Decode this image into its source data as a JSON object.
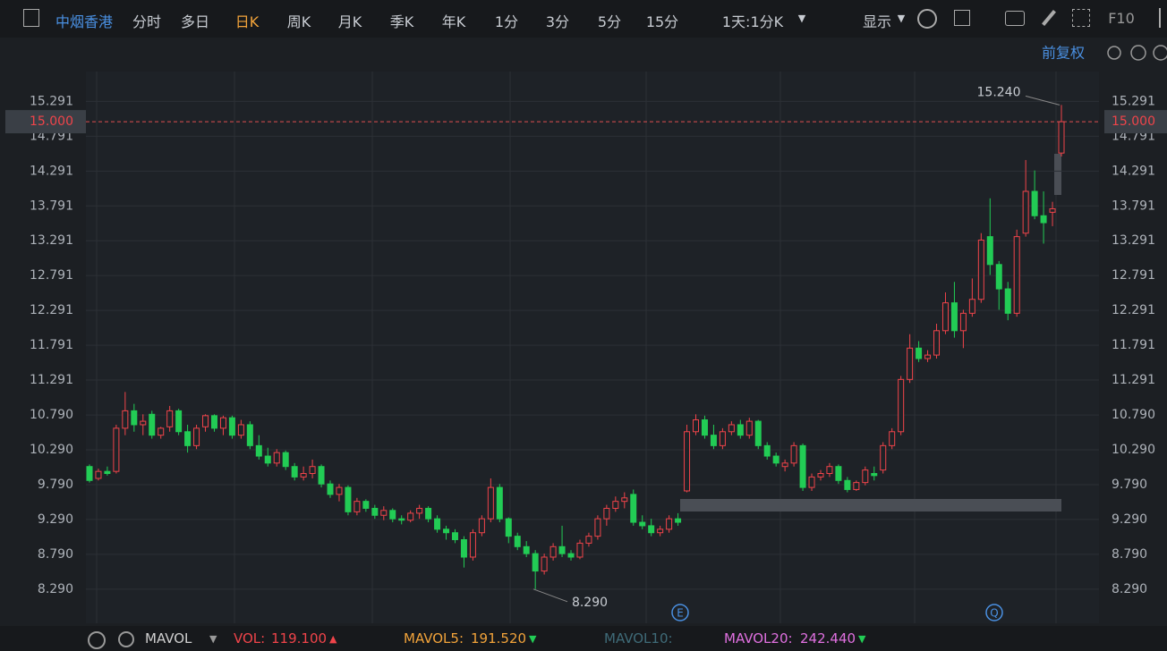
{
  "toolbar": {
    "symbol": "中烟香港",
    "tabs": [
      "分时",
      "多日",
      "日K",
      "周K",
      "月K",
      "季K",
      "年K",
      "1分",
      "3分",
      "5分",
      "15分"
    ],
    "active_tab": "日K",
    "period_select": "1天:1分K",
    "display": "显示",
    "f10": "F10",
    "adjust": "前复权"
  },
  "chart_data": {
    "type": "candlestick",
    "open": [
      10.05,
      9.88,
      9.98,
      9.98,
      10.6,
      10.85,
      10.65,
      10.8,
      10.5,
      10.62,
      10.85,
      10.55,
      10.35,
      10.62,
      10.78,
      10.6,
      10.75,
      10.5,
      10.65,
      10.35,
      10.2,
      10.1,
      10.25,
      10.05,
      9.9,
      9.95,
      10.05,
      9.8,
      9.65,
      9.75,
      9.4,
      9.55,
      9.45,
      9.35,
      9.42,
      9.3,
      9.28,
      9.38,
      9.45,
      9.3,
      9.15,
      9.1,
      9.0,
      8.75,
      9.1,
      9.3,
      9.75,
      9.3,
      9.05,
      8.9,
      8.8,
      8.55,
      8.75,
      8.9,
      8.8,
      8.75,
      8.95,
      9.05,
      9.3,
      9.45,
      9.55,
      9.65,
      9.25,
      9.2,
      9.1,
      9.15,
      9.3,
      9.7,
      10.55,
      10.72,
      10.5,
      10.35,
      10.55,
      10.65,
      10.5,
      10.7,
      10.35,
      10.2,
      10.05,
      10.1,
      10.35,
      9.75,
      9.9,
      9.95,
      10.05,
      9.85,
      9.72,
      9.82,
      9.95,
      10.0,
      10.35,
      10.55,
      11.3,
      11.75,
      11.6,
      11.65,
      12.0,
      12.4,
      12.0,
      12.25,
      12.45,
      13.35,
      12.95,
      12.6,
      12.25,
      13.4,
      14.0,
      13.65,
      13.7,
      14.55
    ],
    "high": [
      10.08,
      10.02,
      10.05,
      10.65,
      11.12,
      10.95,
      10.8,
      10.85,
      10.62,
      10.92,
      10.88,
      10.65,
      10.65,
      10.8,
      10.8,
      10.78,
      10.78,
      10.72,
      10.7,
      10.5,
      10.32,
      10.3,
      10.28,
      10.1,
      10.05,
      10.15,
      10.08,
      9.85,
      9.8,
      9.78,
      9.6,
      9.58,
      9.5,
      9.48,
      9.45,
      9.35,
      9.42,
      9.5,
      9.48,
      9.35,
      9.2,
      9.15,
      9.05,
      9.15,
      9.35,
      9.88,
      9.8,
      9.32,
      9.1,
      8.98,
      8.85,
      8.8,
      8.95,
      9.2,
      8.85,
      9.0,
      9.1,
      9.35,
      9.5,
      9.62,
      9.68,
      9.72,
      9.35,
      9.3,
      9.2,
      9.35,
      9.38,
      10.65,
      10.8,
      10.78,
      10.65,
      10.6,
      10.7,
      10.72,
      10.75,
      10.72,
      10.4,
      10.25,
      10.15,
      10.4,
      10.38,
      9.95,
      10.0,
      10.1,
      10.08,
      9.9,
      9.85,
      10.05,
      10.05,
      10.4,
      10.6,
      11.35,
      11.95,
      11.85,
      11.72,
      12.1,
      12.55,
      12.7,
      12.3,
      12.75,
      13.4,
      13.9,
      13.0,
      12.7,
      13.45,
      14.45,
      14.3,
      14.0,
      13.85,
      15.24
    ],
    "low": [
      9.82,
      9.85,
      9.92,
      9.95,
      10.5,
      10.55,
      10.5,
      10.45,
      10.45,
      10.55,
      10.5,
      10.25,
      10.3,
      10.55,
      10.55,
      10.5,
      10.45,
      10.45,
      10.3,
      10.15,
      10.05,
      10.05,
      10.0,
      9.85,
      9.85,
      9.88,
      9.75,
      9.6,
      9.55,
      9.35,
      9.35,
      9.4,
      9.3,
      9.28,
      9.25,
      9.22,
      9.25,
      9.3,
      9.25,
      9.1,
      9.0,
      8.95,
      8.6,
      8.7,
      9.05,
      9.25,
      9.25,
      8.95,
      8.85,
      8.75,
      8.29,
      8.5,
      8.7,
      8.75,
      8.7,
      8.72,
      8.9,
      9.0,
      9.2,
      9.4,
      9.45,
      9.2,
      9.15,
      9.05,
      9.05,
      9.1,
      9.2,
      9.68,
      10.5,
      10.45,
      10.3,
      10.3,
      10.5,
      10.45,
      10.45,
      10.3,
      10.15,
      10.05,
      9.98,
      10.05,
      9.7,
      9.7,
      9.85,
      9.9,
      9.8,
      9.68,
      9.7,
      9.78,
      9.85,
      9.95,
      10.3,
      10.5,
      11.25,
      11.55,
      11.55,
      11.6,
      11.95,
      11.9,
      11.75,
      12.2,
      12.4,
      12.8,
      12.3,
      12.15,
      12.2,
      13.35,
      13.6,
      13.25,
      13.5,
      14.5
    ],
    "close": [
      9.85,
      9.98,
      9.95,
      10.6,
      10.85,
      10.65,
      10.7,
      10.5,
      10.6,
      10.85,
      10.55,
      10.35,
      10.6,
      10.78,
      10.6,
      10.75,
      10.5,
      10.65,
      10.35,
      10.2,
      10.1,
      10.25,
      10.05,
      9.9,
      9.95,
      10.05,
      9.8,
      9.65,
      9.75,
      9.4,
      9.55,
      9.45,
      9.35,
      9.42,
      9.3,
      9.28,
      9.38,
      9.45,
      9.3,
      9.15,
      9.1,
      9.0,
      8.75,
      9.1,
      9.3,
      9.75,
      9.3,
      9.05,
      8.9,
      8.8,
      8.55,
      8.75,
      8.9,
      8.8,
      8.75,
      8.95,
      9.05,
      9.3,
      9.45,
      9.55,
      9.6,
      9.25,
      9.2,
      9.1,
      9.15,
      9.3,
      9.25,
      10.55,
      10.72,
      10.5,
      10.35,
      10.55,
      10.65,
      10.5,
      10.7,
      10.35,
      10.2,
      10.1,
      10.1,
      10.35,
      9.75,
      9.9,
      9.95,
      10.05,
      9.85,
      9.72,
      9.82,
      10.0,
      9.92,
      10.35,
      10.55,
      11.3,
      11.75,
      11.6,
      11.65,
      12.0,
      12.4,
      12.0,
      12.25,
      12.45,
      13.3,
      12.95,
      12.6,
      12.25,
      13.35,
      14.0,
      13.65,
      13.55,
      13.75,
      15.0
    ],
    "up_color": "#f0444a",
    "down_color": "#22cc55",
    "ylim": [
      7.8,
      15.72
    ],
    "yticks": [
      {
        "value": 8.29,
        "label": "8.290"
      },
      {
        "value": 8.79,
        "label": "8.790"
      },
      {
        "value": 9.29,
        "label": "9.290"
      },
      {
        "value": 9.79,
        "label": "9.790"
      },
      {
        "value": 10.29,
        "label": "10.290"
      },
      {
        "value": 10.79,
        "label": "10.790"
      },
      11.291,
      11.791,
      12.291,
      12.791,
      13.291,
      13.791,
      14.291,
      14.791,
      15.291
    ],
    "grid": true,
    "price_line": {
      "value": 15.0,
      "label": "15.000"
    },
    "high_label": {
      "value": 15.24,
      "label": "15.240"
    },
    "low_label": {
      "value": 8.29,
      "label": "8.290"
    },
    "event_markers": [
      "E",
      "Q"
    ]
  },
  "indicator_bar": {
    "name": "MAVOL",
    "items": [
      {
        "label": "VOL:",
        "value": "119.100"
      },
      {
        "label": "MAVOL5:",
        "value": "191.520"
      },
      {
        "label": "MAVOL10:"
      },
      {
        "label": "MAVOL20:",
        "value": "242.440"
      }
    ]
  }
}
